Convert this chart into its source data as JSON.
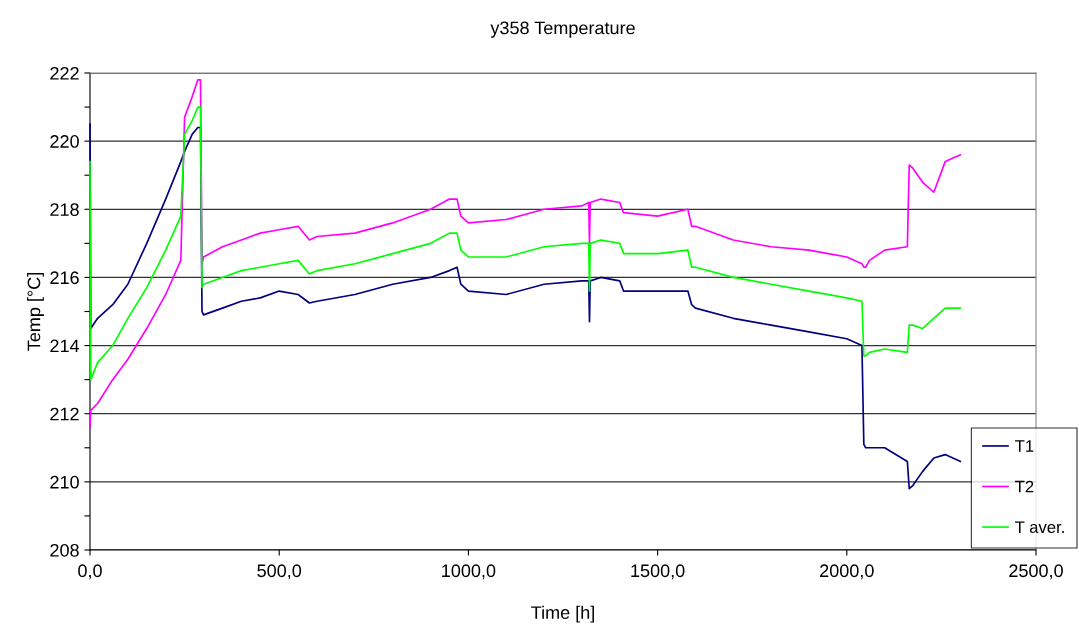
{
  "chart_data": {
    "type": "line",
    "title": "y358 Temperature",
    "xlabel": "Time [h]",
    "ylabel": "Temp [°C]",
    "x": [
      0,
      2,
      20,
      60,
      100,
      150,
      200,
      240,
      250,
      270,
      285,
      292,
      296,
      300,
      350,
      400,
      450,
      500,
      550,
      580,
      600,
      700,
      800,
      900,
      950,
      970,
      980,
      1000,
      1100,
      1200,
      1300,
      1318,
      1320,
      1322,
      1350,
      1400,
      1410,
      1500,
      1580,
      1590,
      1600,
      1700,
      1800,
      1900,
      2000,
      2040,
      2045,
      2050,
      2060,
      2100,
      2160,
      2165,
      2175,
      2200,
      2230,
      2260,
      2300
    ],
    "series": [
      {
        "name": "T1",
        "color": "#000080",
        "values": [
          220.5,
          214.5,
          214.8,
          215.2,
          215.8,
          217,
          218.3,
          219.4,
          219.7,
          220.2,
          220.4,
          220.4,
          215.0,
          214.9,
          215.1,
          215.3,
          215.4,
          215.6,
          215.5,
          215.25,
          215.3,
          215.5,
          215.8,
          216.0,
          216.2,
          216.3,
          215.8,
          215.6,
          215.5,
          215.8,
          215.9,
          215.9,
          214.7,
          215.9,
          216.0,
          215.9,
          215.6,
          215.6,
          215.6,
          215.2,
          215.1,
          214.8,
          214.6,
          214.4,
          214.2,
          214.0,
          211.1,
          211.0,
          211.0,
          211.0,
          210.6,
          209.8,
          209.9,
          210.3,
          210.7,
          210.8,
          210.6
        ]
      },
      {
        "name": "T2",
        "color": "#ff00ff",
        "values": [
          211.6,
          212.1,
          212.3,
          213,
          213.6,
          214.5,
          215.5,
          216.5,
          220.7,
          221.3,
          221.8,
          221.8,
          216.4,
          216.6,
          216.9,
          217.1,
          217.3,
          217.4,
          217.5,
          217.1,
          217.2,
          217.3,
          217.6,
          218.0,
          218.3,
          218.3,
          217.8,
          217.6,
          217.7,
          218.0,
          218.1,
          218.2,
          217.0,
          218.2,
          218.3,
          218.2,
          217.9,
          217.8,
          218.0,
          217.5,
          217.5,
          217.1,
          216.9,
          216.8,
          216.6,
          216.4,
          216.3,
          216.3,
          216.5,
          216.8,
          216.9,
          219.3,
          219.2,
          218.8,
          218.5,
          219.4,
          219.6
        ]
      },
      {
        "name": "T aver.",
        "color": "#00ff00",
        "values": [
          219.4,
          213,
          213.5,
          214,
          214.8,
          215.7,
          216.8,
          217.8,
          220.2,
          220.6,
          221.0,
          221.0,
          215.7,
          215.8,
          216.0,
          216.2,
          216.3,
          216.4,
          216.5,
          216.1,
          216.2,
          216.4,
          216.7,
          217.0,
          217.3,
          217.3,
          216.8,
          216.6,
          216.6,
          216.9,
          217.0,
          217.0,
          215.6,
          217.0,
          217.1,
          217.0,
          216.7,
          216.7,
          216.8,
          216.3,
          216.3,
          216.0,
          215.8,
          215.6,
          215.4,
          215.3,
          213.7,
          213.7,
          213.8,
          213.9,
          213.8,
          214.6,
          214.6,
          214.5,
          214.8,
          215.1,
          215.1
        ]
      }
    ],
    "xlim": [
      0,
      2500
    ],
    "ylim": [
      208,
      222
    ],
    "xticks": [
      {
        "value": 0,
        "label": "0,0"
      },
      {
        "value": 500,
        "label": "500,0"
      },
      {
        "value": 1000,
        "label": "1000,0"
      },
      {
        "value": 1500,
        "label": "1500,0"
      },
      {
        "value": 2000,
        "label": "2000,0"
      },
      {
        "value": 2500,
        "label": "2500,0"
      }
    ],
    "yticks": [
      208,
      {
        "value": 209,
        "label": null
      },
      210,
      {
        "value": 211,
        "label": null
      },
      212,
      {
        "value": 213,
        "label": null
      },
      214,
      {
        "value": 215,
        "label": null
      },
      216,
      {
        "value": 217,
        "label": null
      },
      218,
      {
        "value": 219,
        "label": null
      },
      220,
      {
        "value": 221,
        "label": null
      },
      222
    ],
    "grid": "y",
    "legend": "bottom right",
    "marker": "none",
    "line_style": "solid"
  }
}
